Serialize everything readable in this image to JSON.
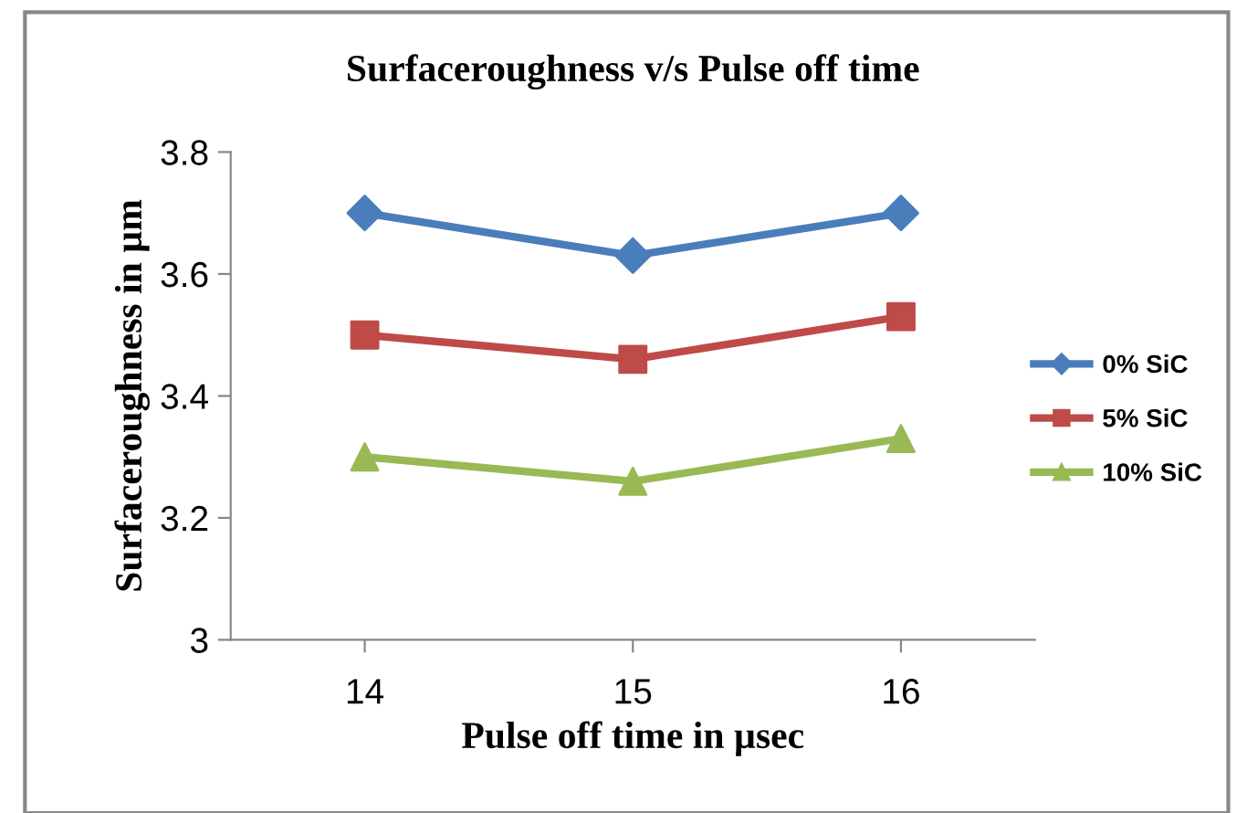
{
  "chart_data": {
    "type": "line",
    "title": "Surfaceroughness v/s Pulse off time",
    "xlabel": "Pulse off time in µsec",
    "ylabel": "Surfaceroughness in µm",
    "x": [
      14,
      15,
      16
    ],
    "xlim": [
      13.5,
      16.5
    ],
    "xticks": [
      14,
      15,
      16
    ],
    "series": [
      {
        "name": "0% SiC",
        "color": "#4a7ebb",
        "marker": "diamond",
        "values": [
          3.7,
          3.63,
          3.7
        ]
      },
      {
        "name": "5% SiC",
        "color": "#be4b48",
        "marker": "square",
        "values": [
          3.5,
          3.46,
          3.53
        ]
      },
      {
        "name": "10% SiC",
        "color": "#98b954",
        "marker": "triangle",
        "values": [
          3.3,
          3.26,
          3.33
        ]
      }
    ],
    "ylim": [
      3,
      3.8
    ],
    "yticks": [
      3,
      3.2,
      3.4,
      3.6,
      3.8
    ],
    "legend": "right",
    "line_style": "solid"
  }
}
